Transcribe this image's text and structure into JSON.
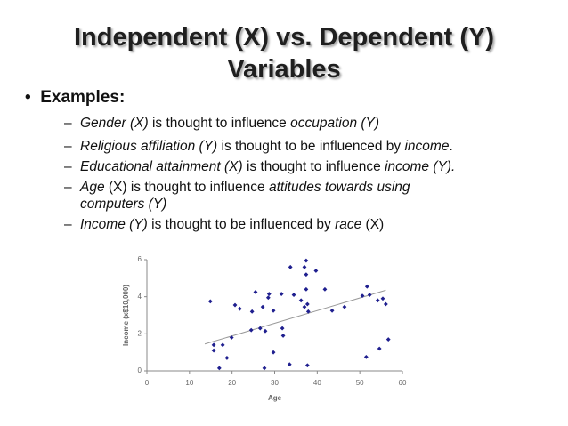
{
  "title": [
    "Independent (X) vs. Dependent (Y)",
    "Variables"
  ],
  "bullet": "Examples:",
  "sub_bullets": [
    [
      {
        "text": "Gender (X)",
        "italic": true
      },
      {
        "text": " is thought to influence ",
        "italic": false
      },
      {
        "text": "occupation (Y)",
        "italic": true
      }
    ],
    [
      {
        "text": "Religious affiliation (Y)",
        "italic": true
      },
      {
        "text": " is thought to be influenced by ",
        "italic": false
      },
      {
        "text": "income",
        "italic": true
      },
      {
        "text": ".",
        "italic": false
      }
    ],
    [
      {
        "text": "Educational attainment (X)",
        "italic": true
      },
      {
        "text": " is thought to influence ",
        "italic": false
      },
      {
        "text": "income (Y).",
        "italic": true
      }
    ],
    [
      {
        "text": "Age",
        "italic": true
      },
      {
        "text": " (X) is thought to influence ",
        "italic": false
      },
      {
        "text": "attitudes towards using computers (Y)",
        "italic": true
      }
    ],
    [
      {
        "text": "Income (Y)",
        "italic": true
      },
      {
        "text": " is thought to be influenced by ",
        "italic": false
      },
      {
        "text": "race",
        "italic": true
      },
      {
        "text": " (X)",
        "italic": false
      }
    ]
  ],
  "chart_data": {
    "type": "scatter",
    "x_label": "Age",
    "y_label": "Income (x$10,000)",
    "color": "#1f1f8f",
    "x": [
      14.9,
      15.7,
      15.7,
      17,
      17.8,
      18.8,
      19.9,
      20.7,
      21.8,
      24.5,
      24.7,
      25.5,
      26.6,
      27.2,
      27.6,
      27.8,
      28.5,
      28.7,
      29.7,
      29.7,
      31.6,
      31.8,
      32,
      33.5,
      33.7,
      34.5,
      36.2,
      37,
      37,
      37.4,
      37.4,
      37.4,
      37.7,
      37.9,
      37.7,
      39.7,
      41.8,
      43.5,
      46.4,
      50.6,
      51.5,
      51.7,
      52.3,
      54.2,
      54.6,
      55.4,
      56.7,
      56.1
    ],
    "y": [
      3.75,
      1.4,
      1.1,
      0.15,
      1.4,
      0.7,
      1.8,
      3.55,
      3.35,
      2.2,
      3.2,
      4.25,
      2.3,
      3.45,
      0.15,
      2.15,
      3.95,
      4.15,
      1,
      3.25,
      4.15,
      2.3,
      1.9,
      0.35,
      5.6,
      4.1,
      3.8,
      3.45,
      5.6,
      5.95,
      5.2,
      4.4,
      3.6,
      3.2,
      0.3,
      5.4,
      4.4,
      3.25,
      3.45,
      4.05,
      0.75,
      4.55,
      4.1,
      3.8,
      1.2,
      3.9,
      1.7,
      3.6
    ],
    "trendline": {
      "x": [
        13.6,
        56.1
      ],
      "y": [
        1.45,
        4.35
      ],
      "color": "#999999"
    },
    "xlim": [
      0,
      60
    ],
    "xticks": [
      0,
      10,
      20,
      30,
      40,
      50,
      60
    ],
    "ylim": [
      0,
      6
    ],
    "yticks": [
      0,
      2,
      4,
      6
    ]
  }
}
